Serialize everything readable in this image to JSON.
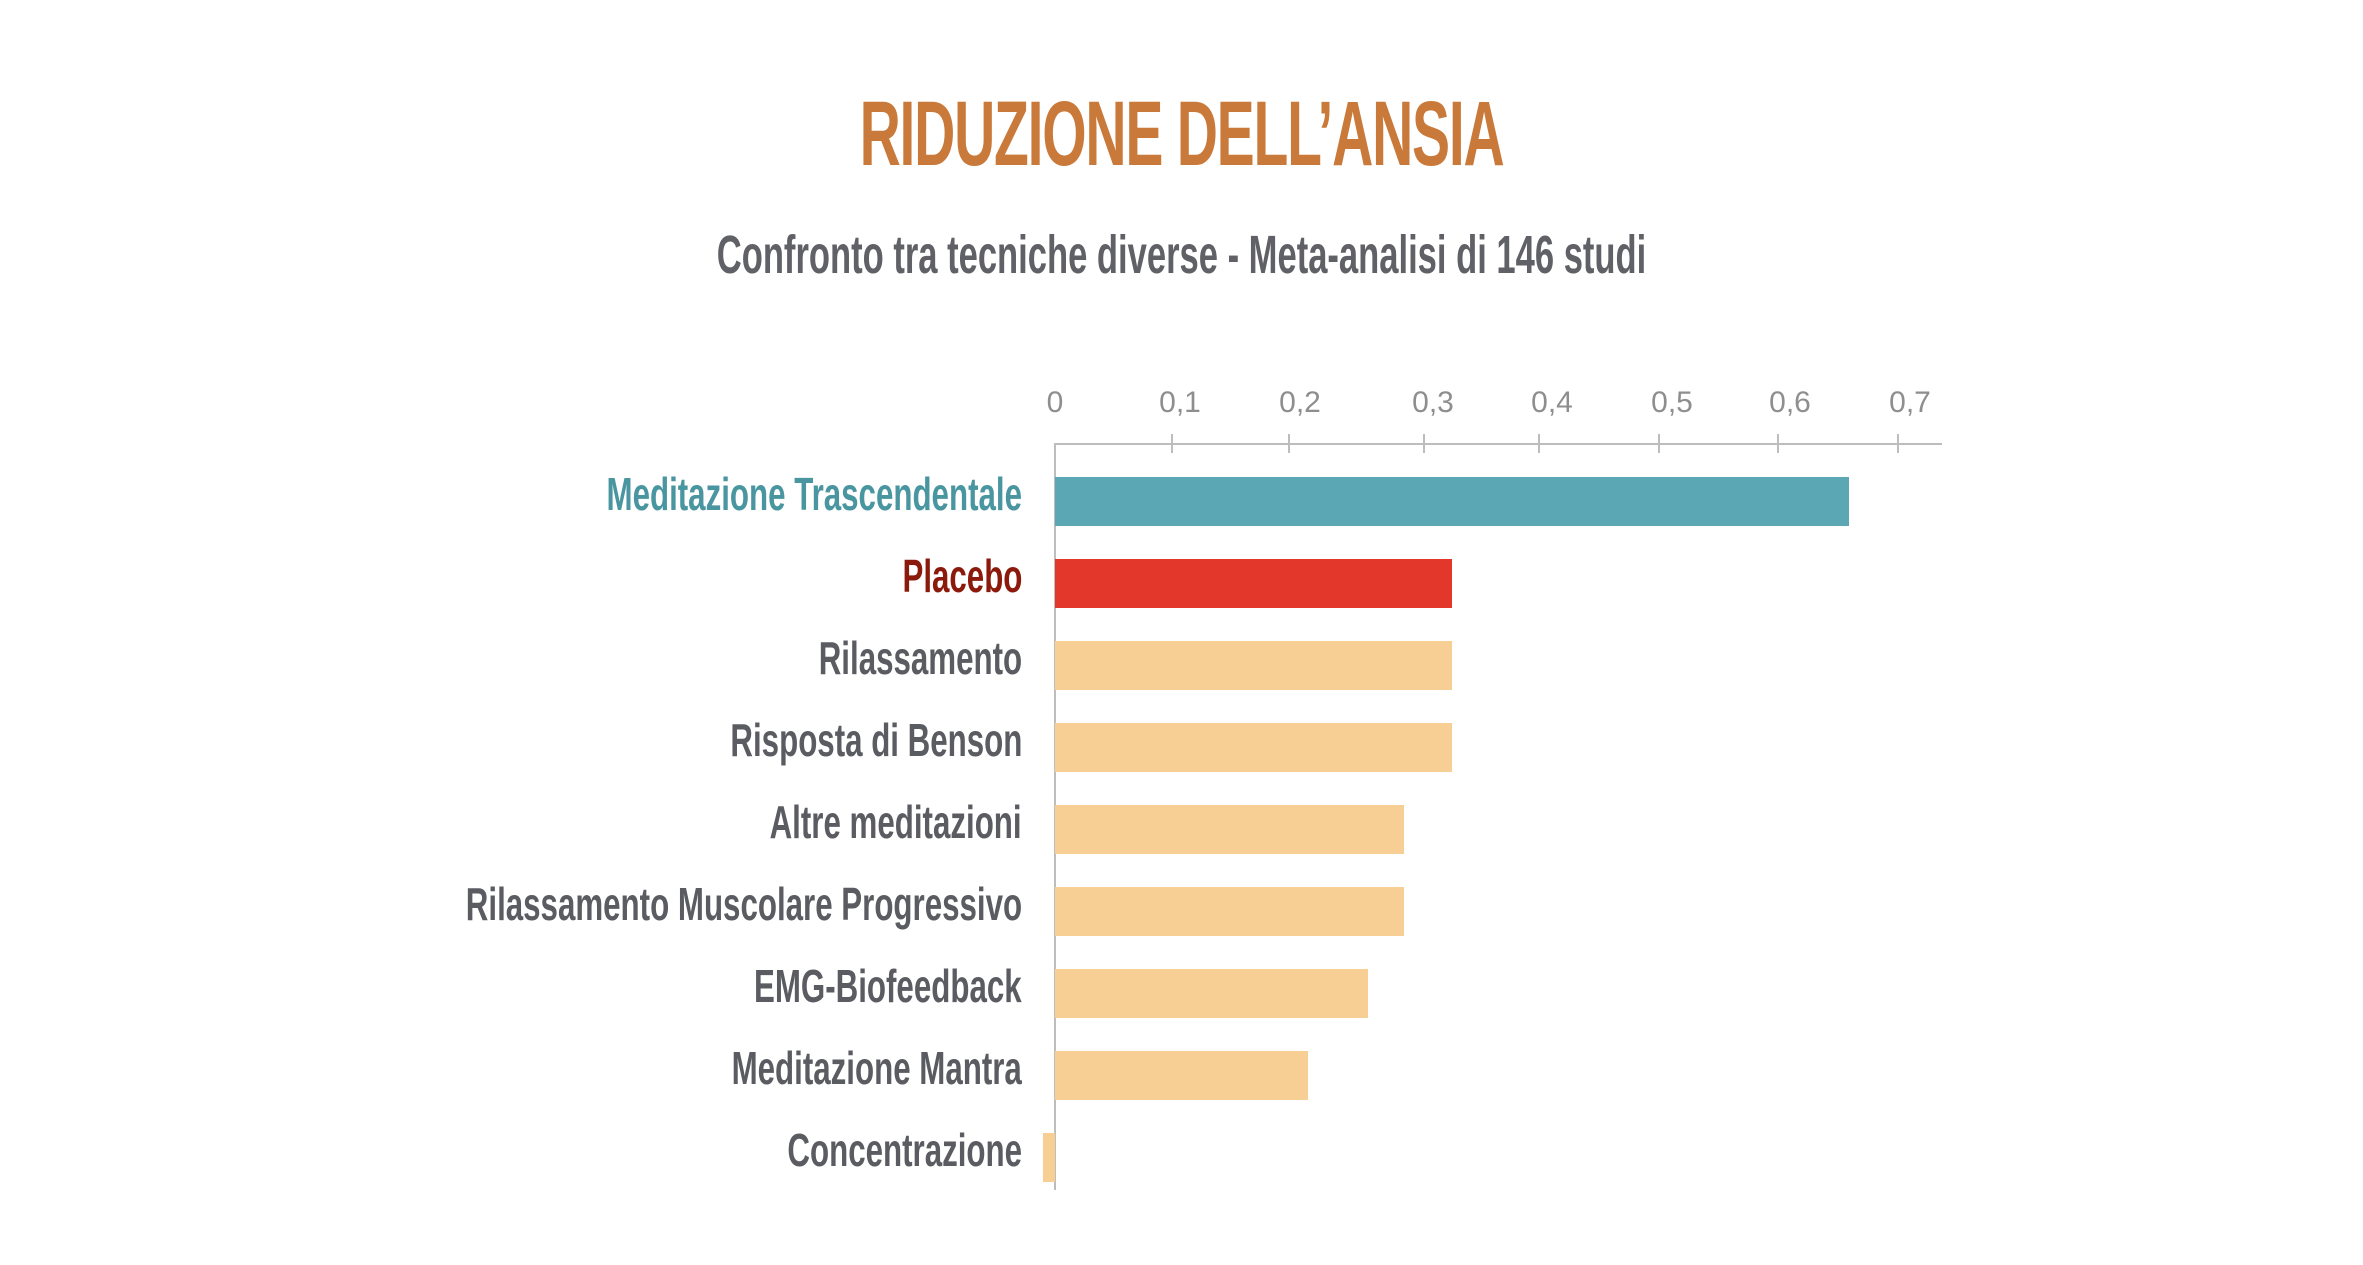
{
  "header": {
    "title": "RIDUZIONE DELL’ANSIA",
    "subtitle": "Confronto tra tecniche diverse - Meta-analisi di 146 studi"
  },
  "axis": {
    "ticks": [
      "0",
      "0,1",
      "0,2",
      "0,3",
      "0,4",
      "0,5",
      "0,6",
      "0,7"
    ]
  },
  "colors": {
    "title": "#c97a3a",
    "highlight_bar": "#5ba8b4",
    "highlight_label": "#4a96a0",
    "placebo_bar": "#e2372a",
    "placebo_label": "#8b1a0c",
    "default_bar": "#f7ce94",
    "default_label": "#5a5c62"
  },
  "rows": [
    {
      "label": "Meditazione Trascendentale",
      "value": 0.66
    },
    {
      "label": "Placebo",
      "value": 0.33
    },
    {
      "label": "Rilassamento",
      "value": 0.33
    },
    {
      "label": "Risposta di Benson",
      "value": 0.33
    },
    {
      "label": "Altre meditazioni",
      "value": 0.29
    },
    {
      "label": "Rilassamento Muscolare Progressivo",
      "value": 0.29
    },
    {
      "label": "EMG-Biofeedback",
      "value": 0.26
    },
    {
      "label": "Meditazione Mantra",
      "value": 0.21
    },
    {
      "label": "Concentrazione",
      "value": -0.01
    }
  ],
  "chart_data": {
    "type": "bar",
    "orientation": "horizontal",
    "title": "RIDUZIONE DELL’ANSIA",
    "subtitle": "Confronto tra tecniche diverse - Meta-analisi di 146 studi",
    "categories": [
      "Meditazione Trascendentale",
      "Placebo",
      "Rilassamento",
      "Risposta di Benson",
      "Altre meditazioni",
      "Rilassamento Muscolare Progressivo",
      "EMG-Biofeedback",
      "Meditazione Mantra",
      "Concentrazione"
    ],
    "values": [
      0.66,
      0.33,
      0.33,
      0.33,
      0.29,
      0.29,
      0.26,
      0.21,
      -0.01
    ],
    "xlabel": "",
    "ylabel": "",
    "xlim": [
      0,
      0.7
    ],
    "xticks": [
      "0",
      "0,1",
      "0,2",
      "0,3",
      "0,4",
      "0,5",
      "0,6",
      "0,7"
    ],
    "axis_position": "top",
    "grid": false,
    "legend": "none"
  }
}
